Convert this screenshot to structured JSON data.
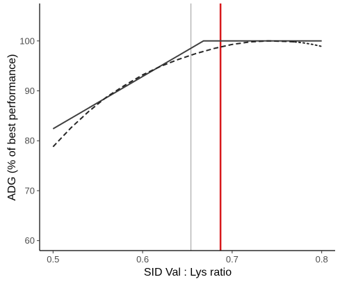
{
  "chart_data": {
    "type": "line",
    "title": "",
    "xlabel": "SID Val : Lys ratio",
    "ylabel": "ADG (% of best performance)",
    "xlim": [
      0.485,
      0.815
    ],
    "ylim": [
      58.0,
      107.5
    ],
    "x_ticks": [
      0.5,
      0.6,
      0.7,
      0.8
    ],
    "x_tick_labels": [
      "0.5",
      "0.6",
      "0.7",
      "0.8"
    ],
    "y_ticks": [
      60,
      70,
      80,
      90,
      100
    ],
    "y_tick_labels": [
      "60",
      "70",
      "80",
      "90",
      "100"
    ],
    "grid": false,
    "legend": "none",
    "series": [
      {
        "style": "solid",
        "color": "#404040",
        "x": [
          0.5,
          0.668,
          0.8
        ],
        "y": [
          82.4,
          100.0,
          100.0
        ]
      },
      {
        "style": "dashed",
        "color": "#262626",
        "x": [
          0.5,
          0.52,
          0.54,
          0.56,
          0.58,
          0.6,
          0.62,
          0.64,
          0.66,
          0.68,
          0.7,
          0.72,
          0.74,
          0.76,
          0.77
        ],
        "y": [
          78.8,
          82.6,
          85.9,
          88.8,
          91.1,
          93.2,
          94.9,
          96.3,
          97.5,
          98.5,
          99.3,
          99.8,
          100.0,
          99.9,
          99.8
        ]
      },
      {
        "style": "dotted",
        "color": "#262626",
        "x": [
          0.77,
          0.78,
          0.79,
          0.8
        ],
        "y": [
          99.8,
          99.6,
          99.3,
          98.9
        ]
      }
    ],
    "reference_lines": [
      {
        "axis": "x",
        "value": 0.654,
        "color": "#9a9a9a",
        "width": 1
      },
      {
        "axis": "x",
        "value": 0.687,
        "color": "#d7191c",
        "width": 2.5
      }
    ]
  }
}
